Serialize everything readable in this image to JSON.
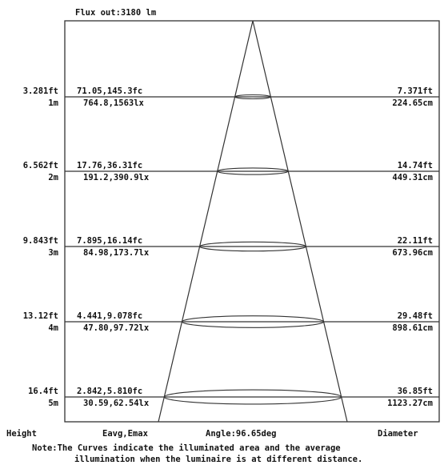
{
  "flux_label": "Flux out:3180 lm",
  "footer": {
    "height_label": "Height",
    "illum_label": "Eavg,Emax",
    "angle_label": "Angle:96.65deg",
    "diameter_label": "Diameter"
  },
  "note": {
    "line1": "Note:The Curves indicate the illuminated area and the average",
    "line2": "illumination when the luminaire is at different distance."
  },
  "rows": [
    {
      "height_ft": "3.281ft",
      "height_m": "1m",
      "illum_fc": "71.05,145.3fc",
      "illum_lx": "764.8,1563lx",
      "diameter_ft": "7.371ft",
      "diameter_cm": "224.65cm"
    },
    {
      "height_ft": "6.562ft",
      "height_m": "2m",
      "illum_fc": "17.76,36.31fc",
      "illum_lx": "191.2,390.9lx",
      "diameter_ft": "14.74ft",
      "diameter_cm": "449.31cm"
    },
    {
      "height_ft": "9.843ft",
      "height_m": "3m",
      "illum_fc": "7.895,16.14fc",
      "illum_lx": "84.98,173.7lx",
      "diameter_ft": "22.11ft",
      "diameter_cm": "673.96cm"
    },
    {
      "height_ft": "13.12ft",
      "height_m": "4m",
      "illum_fc": "4.441,9.078fc",
      "illum_lx": "47.80,97.72lx",
      "diameter_ft": "29.48ft",
      "diameter_cm": "898.61cm"
    },
    {
      "height_ft": "16.4ft",
      "height_m": "5m",
      "illum_fc": "2.842,5.810fc",
      "illum_lx": "30.59,62.54lx",
      "diameter_ft": "36.85ft",
      "diameter_cm": "1123.27cm"
    }
  ]
}
